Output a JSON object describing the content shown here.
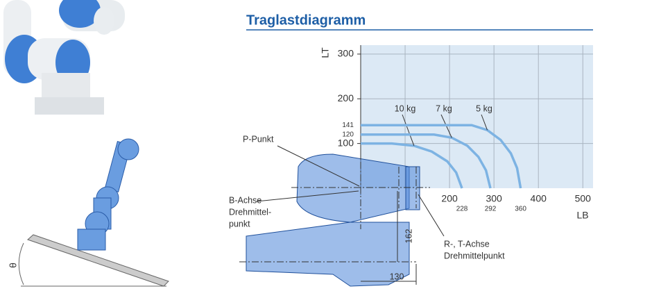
{
  "title": "Traglastdiagramm",
  "chart_data": {
    "type": "line",
    "xlabel": "LB",
    "ylabel": "LT",
    "xlim": [
      0,
      523
    ],
    "ylim": [
      0,
      320
    ],
    "xticks": [
      200,
      300,
      400,
      500
    ],
    "yticks": [
      100,
      200,
      300
    ],
    "xticks_minor": [
      228,
      292,
      360
    ],
    "yticks_minor": [
      120,
      141
    ],
    "grid": true,
    "series": [
      {
        "name": "10 kg",
        "color": "#7db3e3",
        "x": [
          0,
          70,
          120,
          160,
          195,
          215,
          228
        ],
        "values": [
          100,
          100,
          95,
          82,
          60,
          35,
          0
        ]
      },
      {
        "name": "7 kg",
        "color": "#7db3e3",
        "x": [
          0,
          165,
          205,
          240,
          265,
          282,
          292
        ],
        "values": [
          120,
          120,
          113,
          95,
          70,
          40,
          0
        ]
      },
      {
        "name": "5 kg",
        "color": "#7db3e3",
        "x": [
          0,
          250,
          285,
          315,
          338,
          352,
          360
        ],
        "values": [
          141,
          141,
          130,
          108,
          78,
          45,
          0
        ]
      }
    ]
  },
  "labels": {
    "p_point": "P-Punkt",
    "b_axis": [
      "B-Achse",
      "Drehmittel-",
      "punkt"
    ],
    "rt_axis": [
      "R-, T-Achse",
      "Drehmittelpunkt"
    ],
    "theta": "θ"
  },
  "dimensions": {
    "vertical": 162,
    "horizontal": 130
  }
}
